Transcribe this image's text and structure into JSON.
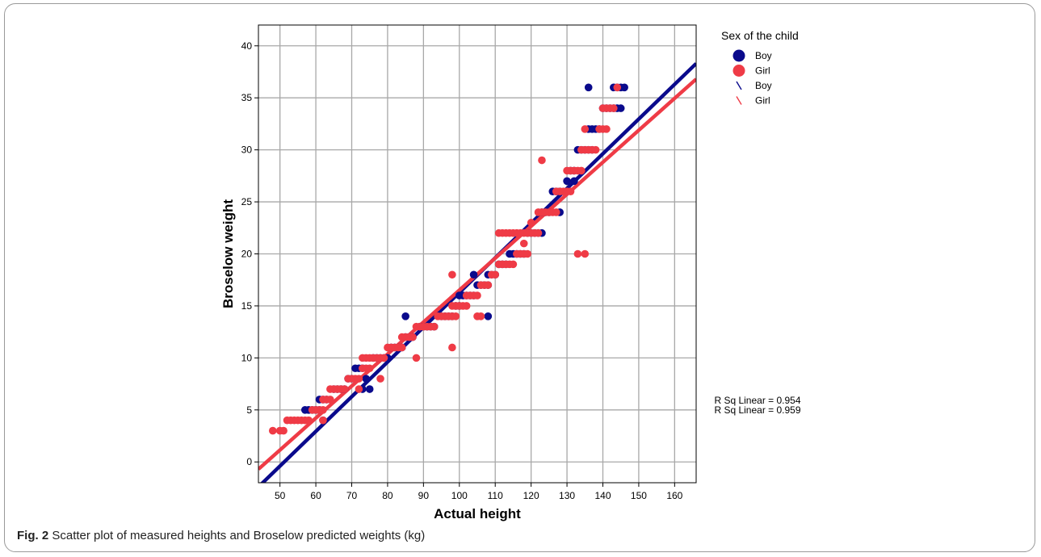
{
  "caption": {
    "label": "Fig. 2",
    "text": "Scatter plot of measured heights and Broselow predicted weights (kg)"
  },
  "chart_data": {
    "type": "scatter",
    "title": "",
    "xlabel": "Actual height",
    "ylabel": "Broselow weight",
    "xlim": [
      44,
      166
    ],
    "ylim": [
      -2,
      42
    ],
    "x_ticks": [
      50,
      60,
      70,
      80,
      90,
      100,
      110,
      120,
      130,
      140,
      150,
      160
    ],
    "y_ticks": [
      0,
      5,
      10,
      15,
      20,
      25,
      30,
      35,
      40
    ],
    "grid": true,
    "legend_title": "Sex of the child",
    "legend_position": "top-right outside",
    "legend_entries": [
      {
        "label": "Boy",
        "kind": "marker",
        "color": "#0a0a8c"
      },
      {
        "label": "Girl",
        "kind": "marker",
        "color": "#ef3b46"
      },
      {
        "label": "Boy",
        "kind": "line",
        "color": "#0a0a8c"
      },
      {
        "label": "Girl",
        "kind": "line",
        "color": "#ef3b46"
      }
    ],
    "annotations": [
      "R Sq Linear = 0.954",
      "R Sq Linear = 0.959"
    ],
    "series": [
      {
        "name": "Boy",
        "color": "#0a0a8c",
        "points": [
          [
            57,
            5
          ],
          [
            58,
            5
          ],
          [
            59,
            5
          ],
          [
            60,
            5
          ],
          [
            61,
            6
          ],
          [
            62,
            6
          ],
          [
            63,
            6
          ],
          [
            61,
            5
          ],
          [
            62,
            4
          ],
          [
            65,
            7
          ],
          [
            66,
            7
          ],
          [
            67,
            7
          ],
          [
            68,
            7
          ],
          [
            69,
            8
          ],
          [
            70,
            8
          ],
          [
            71,
            9
          ],
          [
            72,
            9
          ],
          [
            73,
            9
          ],
          [
            74,
            8
          ],
          [
            73,
            7
          ],
          [
            75,
            7
          ],
          [
            76,
            10
          ],
          [
            77,
            10
          ],
          [
            78,
            10
          ],
          [
            79,
            10
          ],
          [
            80,
            10
          ],
          [
            81,
            11
          ],
          [
            82,
            11
          ],
          [
            83,
            11
          ],
          [
            84,
            11
          ],
          [
            85,
            12
          ],
          [
            86,
            12
          ],
          [
            87,
            12
          ],
          [
            85,
            14
          ],
          [
            89,
            13
          ],
          [
            90,
            13
          ],
          [
            91,
            13
          ],
          [
            92,
            13
          ],
          [
            93,
            13
          ],
          [
            95,
            14
          ],
          [
            96,
            14
          ],
          [
            97,
            14
          ],
          [
            98,
            14
          ],
          [
            99,
            15
          ],
          [
            100,
            15
          ],
          [
            100,
            16
          ],
          [
            101,
            16
          ],
          [
            102,
            16
          ],
          [
            103,
            16
          ],
          [
            104,
            16
          ],
          [
            104,
            18
          ],
          [
            105,
            17
          ],
          [
            106,
            17
          ],
          [
            107,
            17
          ],
          [
            108,
            17
          ],
          [
            108,
            18
          ],
          [
            109,
            18
          ],
          [
            110,
            18
          ],
          [
            108,
            14
          ],
          [
            111,
            19
          ],
          [
            112,
            19
          ],
          [
            113,
            19
          ],
          [
            114,
            20
          ],
          [
            115,
            20
          ],
          [
            116,
            20
          ],
          [
            117,
            20
          ],
          [
            118,
            20
          ],
          [
            119,
            22
          ],
          [
            120,
            22
          ],
          [
            121,
            22
          ],
          [
            122,
            22
          ],
          [
            123,
            22
          ],
          [
            123,
            24
          ],
          [
            124,
            24
          ],
          [
            125,
            24
          ],
          [
            126,
            26
          ],
          [
            127,
            26
          ],
          [
            128,
            26
          ],
          [
            128,
            24
          ],
          [
            130,
            27
          ],
          [
            132,
            27
          ],
          [
            131,
            28
          ],
          [
            132,
            28
          ],
          [
            133,
            30
          ],
          [
            134,
            30
          ],
          [
            135,
            30
          ],
          [
            136,
            30
          ],
          [
            137,
            30
          ],
          [
            136,
            32
          ],
          [
            137,
            32
          ],
          [
            138,
            32
          ],
          [
            139,
            32
          ],
          [
            140,
            34
          ],
          [
            141,
            34
          ],
          [
            142,
            34
          ],
          [
            143,
            34
          ],
          [
            144,
            34
          ],
          [
            145,
            34
          ],
          [
            136,
            36
          ],
          [
            143,
            36
          ],
          [
            144,
            36
          ],
          [
            145,
            36
          ],
          [
            146,
            36
          ]
        ]
      },
      {
        "name": "Girl",
        "color": "#ef3b46",
        "points": [
          [
            48,
            3
          ],
          [
            50,
            3
          ],
          [
            51,
            3
          ],
          [
            52,
            4
          ],
          [
            53,
            4
          ],
          [
            54,
            4
          ],
          [
            55,
            4
          ],
          [
            56,
            4
          ],
          [
            57,
            4
          ],
          [
            58,
            4
          ],
          [
            59,
            5
          ],
          [
            60,
            5
          ],
          [
            61,
            5
          ],
          [
            62,
            5
          ],
          [
            62,
            6
          ],
          [
            63,
            6
          ],
          [
            64,
            6
          ],
          [
            62,
            4
          ],
          [
            64,
            7
          ],
          [
            65,
            7
          ],
          [
            66,
            7
          ],
          [
            67,
            7
          ],
          [
            68,
            7
          ],
          [
            69,
            8
          ],
          [
            70,
            8
          ],
          [
            71,
            8
          ],
          [
            72,
            8
          ],
          [
            72,
            7
          ],
          [
            73,
            9
          ],
          [
            74,
            9
          ],
          [
            75,
            9
          ],
          [
            73,
            10
          ],
          [
            74,
            10
          ],
          [
            75,
            10
          ],
          [
            76,
            10
          ],
          [
            77,
            10
          ],
          [
            78,
            10
          ],
          [
            79,
            10
          ],
          [
            78,
            8
          ],
          [
            80,
            11
          ],
          [
            81,
            11
          ],
          [
            82,
            11
          ],
          [
            83,
            11
          ],
          [
            84,
            11
          ],
          [
            88,
            10
          ],
          [
            84,
            12
          ],
          [
            85,
            12
          ],
          [
            86,
            12
          ],
          [
            87,
            12
          ],
          [
            88,
            13
          ],
          [
            89,
            13
          ],
          [
            90,
            13
          ],
          [
            91,
            13
          ],
          [
            92,
            13
          ],
          [
            93,
            13
          ],
          [
            94,
            14
          ],
          [
            95,
            14
          ],
          [
            96,
            14
          ],
          [
            97,
            14
          ],
          [
            98,
            14
          ],
          [
            99,
            14
          ],
          [
            98,
            11
          ],
          [
            98,
            15
          ],
          [
            99,
            15
          ],
          [
            100,
            15
          ],
          [
            101,
            15
          ],
          [
            102,
            15
          ],
          [
            98,
            18
          ],
          [
            102,
            16
          ],
          [
            103,
            16
          ],
          [
            104,
            16
          ],
          [
            105,
            16
          ],
          [
            106,
            17
          ],
          [
            107,
            17
          ],
          [
            108,
            17
          ],
          [
            105,
            14
          ],
          [
            106,
            14
          ],
          [
            109,
            18
          ],
          [
            110,
            18
          ],
          [
            111,
            19
          ],
          [
            112,
            19
          ],
          [
            113,
            19
          ],
          [
            114,
            19
          ],
          [
            115,
            19
          ],
          [
            116,
            20
          ],
          [
            117,
            20
          ],
          [
            118,
            20
          ],
          [
            119,
            20
          ],
          [
            118,
            21
          ],
          [
            111,
            22
          ],
          [
            112,
            22
          ],
          [
            113,
            22
          ],
          [
            114,
            22
          ],
          [
            115,
            22
          ],
          [
            116,
            22
          ],
          [
            117,
            22
          ],
          [
            118,
            22
          ],
          [
            119,
            22
          ],
          [
            120,
            22
          ],
          [
            121,
            22
          ],
          [
            122,
            22
          ],
          [
            120,
            23
          ],
          [
            122,
            24
          ],
          [
            123,
            24
          ],
          [
            124,
            24
          ],
          [
            125,
            24
          ],
          [
            126,
            24
          ],
          [
            127,
            24
          ],
          [
            123,
            29
          ],
          [
            127,
            26
          ],
          [
            128,
            26
          ],
          [
            129,
            26
          ],
          [
            130,
            26
          ],
          [
            131,
            26
          ],
          [
            130,
            28
          ],
          [
            131,
            28
          ],
          [
            132,
            28
          ],
          [
            133,
            28
          ],
          [
            134,
            28
          ],
          [
            133,
            20
          ],
          [
            135,
            20
          ],
          [
            134,
            30
          ],
          [
            135,
            30
          ],
          [
            136,
            30
          ],
          [
            137,
            30
          ],
          [
            138,
            30
          ],
          [
            135,
            32
          ],
          [
            139,
            32
          ],
          [
            140,
            32
          ],
          [
            141,
            32
          ],
          [
            140,
            34
          ],
          [
            141,
            34
          ],
          [
            142,
            34
          ],
          [
            143,
            34
          ],
          [
            144,
            36
          ]
        ]
      }
    ],
    "fit_lines": [
      {
        "name": "Boy",
        "color": "#0a0a8c",
        "x": [
          44,
          166
        ],
        "y": [
          -2.4,
          38.3
        ]
      },
      {
        "name": "Girl",
        "color": "#ef3b46",
        "x": [
          44,
          166
        ],
        "y": [
          -0.7,
          36.8
        ]
      }
    ]
  }
}
